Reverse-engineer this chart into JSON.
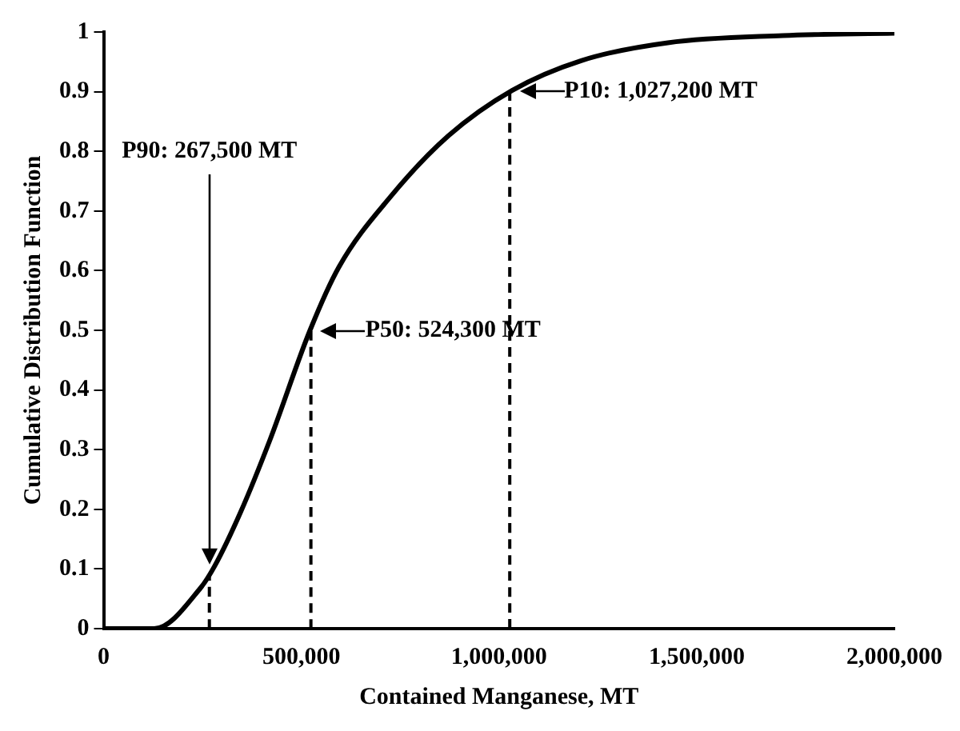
{
  "chart_data": {
    "type": "line",
    "xlabel": "Contained Manganese, MT",
    "ylabel": "Cumulative Distribution Function",
    "xlim": [
      0,
      2000000
    ],
    "xticks": [
      {
        "value": 0,
        "label": "0"
      },
      {
        "value": 500000,
        "label": "500,000"
      },
      {
        "value": 1000000,
        "label": "1,000,000"
      },
      {
        "value": 1500000,
        "label": "1,500,000"
      },
      {
        "value": 2000000,
        "label": "2,000,000"
      }
    ],
    "ylim": [
      0,
      1
    ],
    "yticks": [
      0,
      0.1,
      0.2,
      0.3,
      0.4,
      0.5,
      0.6,
      0.7,
      0.8,
      0.9,
      1
    ],
    "series": [
      {
        "color": "#000000",
        "x": [
          0,
          128000,
          245000,
          281000,
          347000,
          420000,
          522000,
          595000,
          727000,
          872000,
          1033000,
          1208000,
          1427000,
          1718000,
          2000000
        ],
        "values": [
          0,
          0,
          0.068,
          0.105,
          0.196,
          0.315,
          0.5,
          0.606,
          0.725,
          0.826,
          0.902,
          0.952,
          0.982,
          0.994,
          0.998
        ]
      },
      {
        "color": "#000000",
        "line_style": "dashed",
        "x": [
          267500,
          267500
        ],
        "values": [
          0,
          0.09
        ]
      },
      {
        "color": "#000000",
        "line_style": "dashed",
        "x": [
          524300,
          524300
        ],
        "values": [
          0,
          0.5
        ]
      },
      {
        "color": "#000000",
        "line_style": "dashed",
        "x": [
          1027200,
          1027200
        ],
        "values": [
          0,
          0.9
        ]
      }
    ],
    "annotations": [
      "P90: 267,500 MT",
      {
        "text": "P50: 524,300 MT",
        "x": 524300,
        "y": 0.5
      },
      {
        "text": "P10: 1,027,200 MT",
        "x": 1027200,
        "y": 0.9
      }
    ],
    "grid": false,
    "legend": false,
    "marker": "none",
    "line_style": "solid"
  }
}
